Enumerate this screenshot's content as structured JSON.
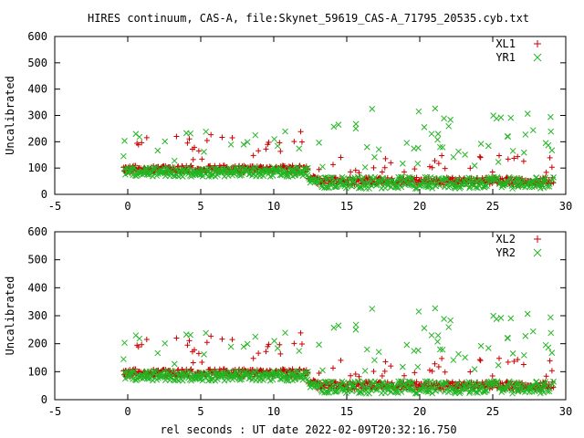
{
  "title": "HIRES continuum, CAS-A, file:Skynet_59619_CAS-A_71795_20535.cyb.txt",
  "colors": {
    "xl": "#cc0000",
    "yr": "#22b522",
    "axis": "#000000"
  },
  "chart_data": [
    {
      "type": "scatter",
      "title": "HIRES continuum, CAS-A, file:Skynet_59619_CAS-A_71795_20535.cyb.txt",
      "xlabel": "",
      "ylabel": "Uncalibrated",
      "xlim": [
        -5,
        30
      ],
      "ylim": [
        0,
        600
      ],
      "x_ticks": [
        -5,
        0,
        5,
        10,
        15,
        20,
        25,
        30
      ],
      "y_ticks": [
        0,
        100,
        200,
        300,
        400,
        500,
        600
      ],
      "legend_position": "top-right",
      "series": [
        {
          "name": "XL1",
          "marker": "plus",
          "segments": [
            {
              "x0": -0.3,
              "x1": 12.4,
              "base": 90,
              "spread": 35,
              "outlier_rate": 0.08,
              "outlier_max": 240
            },
            {
              "x0": 12.4,
              "x1": 13.0,
              "base": 60,
              "spread": 30,
              "outlier_rate": 0.05,
              "outlier_max": 120
            },
            {
              "x0": 13.0,
              "x1": 29.2,
              "base": 45,
              "spread": 35,
              "outlier_rate": 0.07,
              "outlier_max": 150
            }
          ]
        },
        {
          "name": "YR1",
          "marker": "cross",
          "segments": [
            {
              "x0": -0.3,
              "x1": 12.4,
              "base": 78,
              "spread": 45,
              "outlier_rate": 0.06,
              "outlier_max": 255
            },
            {
              "x0": 12.4,
              "x1": 13.0,
              "base": 50,
              "spread": 25,
              "outlier_rate": 0.03,
              "outlier_max": 100
            },
            {
              "x0": 13.0,
              "x1": 29.2,
              "base": 35,
              "spread": 55,
              "outlier_rate": 0.14,
              "outlier_max": 335
            }
          ]
        }
      ]
    },
    {
      "type": "scatter",
      "xlabel": "rel seconds : UT date 2022-02-09T20:32:16.750",
      "ylabel": "Uncalibrated",
      "xlim": [
        -5,
        30
      ],
      "ylim": [
        0,
        600
      ],
      "x_ticks": [
        -5,
        0,
        5,
        10,
        15,
        20,
        25,
        30
      ],
      "y_ticks": [
        0,
        100,
        200,
        300,
        400,
        500,
        600
      ],
      "legend_position": "top-right",
      "series": [
        {
          "name": "XL2",
          "marker": "plus",
          "segments": [
            {
              "x0": -0.3,
              "x1": 12.4,
              "base": 90,
              "spread": 35,
              "outlier_rate": 0.08,
              "outlier_max": 240
            },
            {
              "x0": 12.4,
              "x1": 13.0,
              "base": 60,
              "spread": 30,
              "outlier_rate": 0.05,
              "outlier_max": 120
            },
            {
              "x0": 13.0,
              "x1": 29.2,
              "base": 45,
              "spread": 35,
              "outlier_rate": 0.07,
              "outlier_max": 150
            }
          ]
        },
        {
          "name": "YR2",
          "marker": "cross",
          "segments": [
            {
              "x0": -0.3,
              "x1": 12.4,
              "base": 78,
              "spread": 45,
              "outlier_rate": 0.06,
              "outlier_max": 255
            },
            {
              "x0": 12.4,
              "x1": 13.0,
              "base": 50,
              "spread": 25,
              "outlier_rate": 0.03,
              "outlier_max": 100
            },
            {
              "x0": 13.0,
              "x1": 29.2,
              "base": 35,
              "spread": 55,
              "outlier_rate": 0.14,
              "outlier_max": 335
            }
          ]
        }
      ]
    }
  ]
}
